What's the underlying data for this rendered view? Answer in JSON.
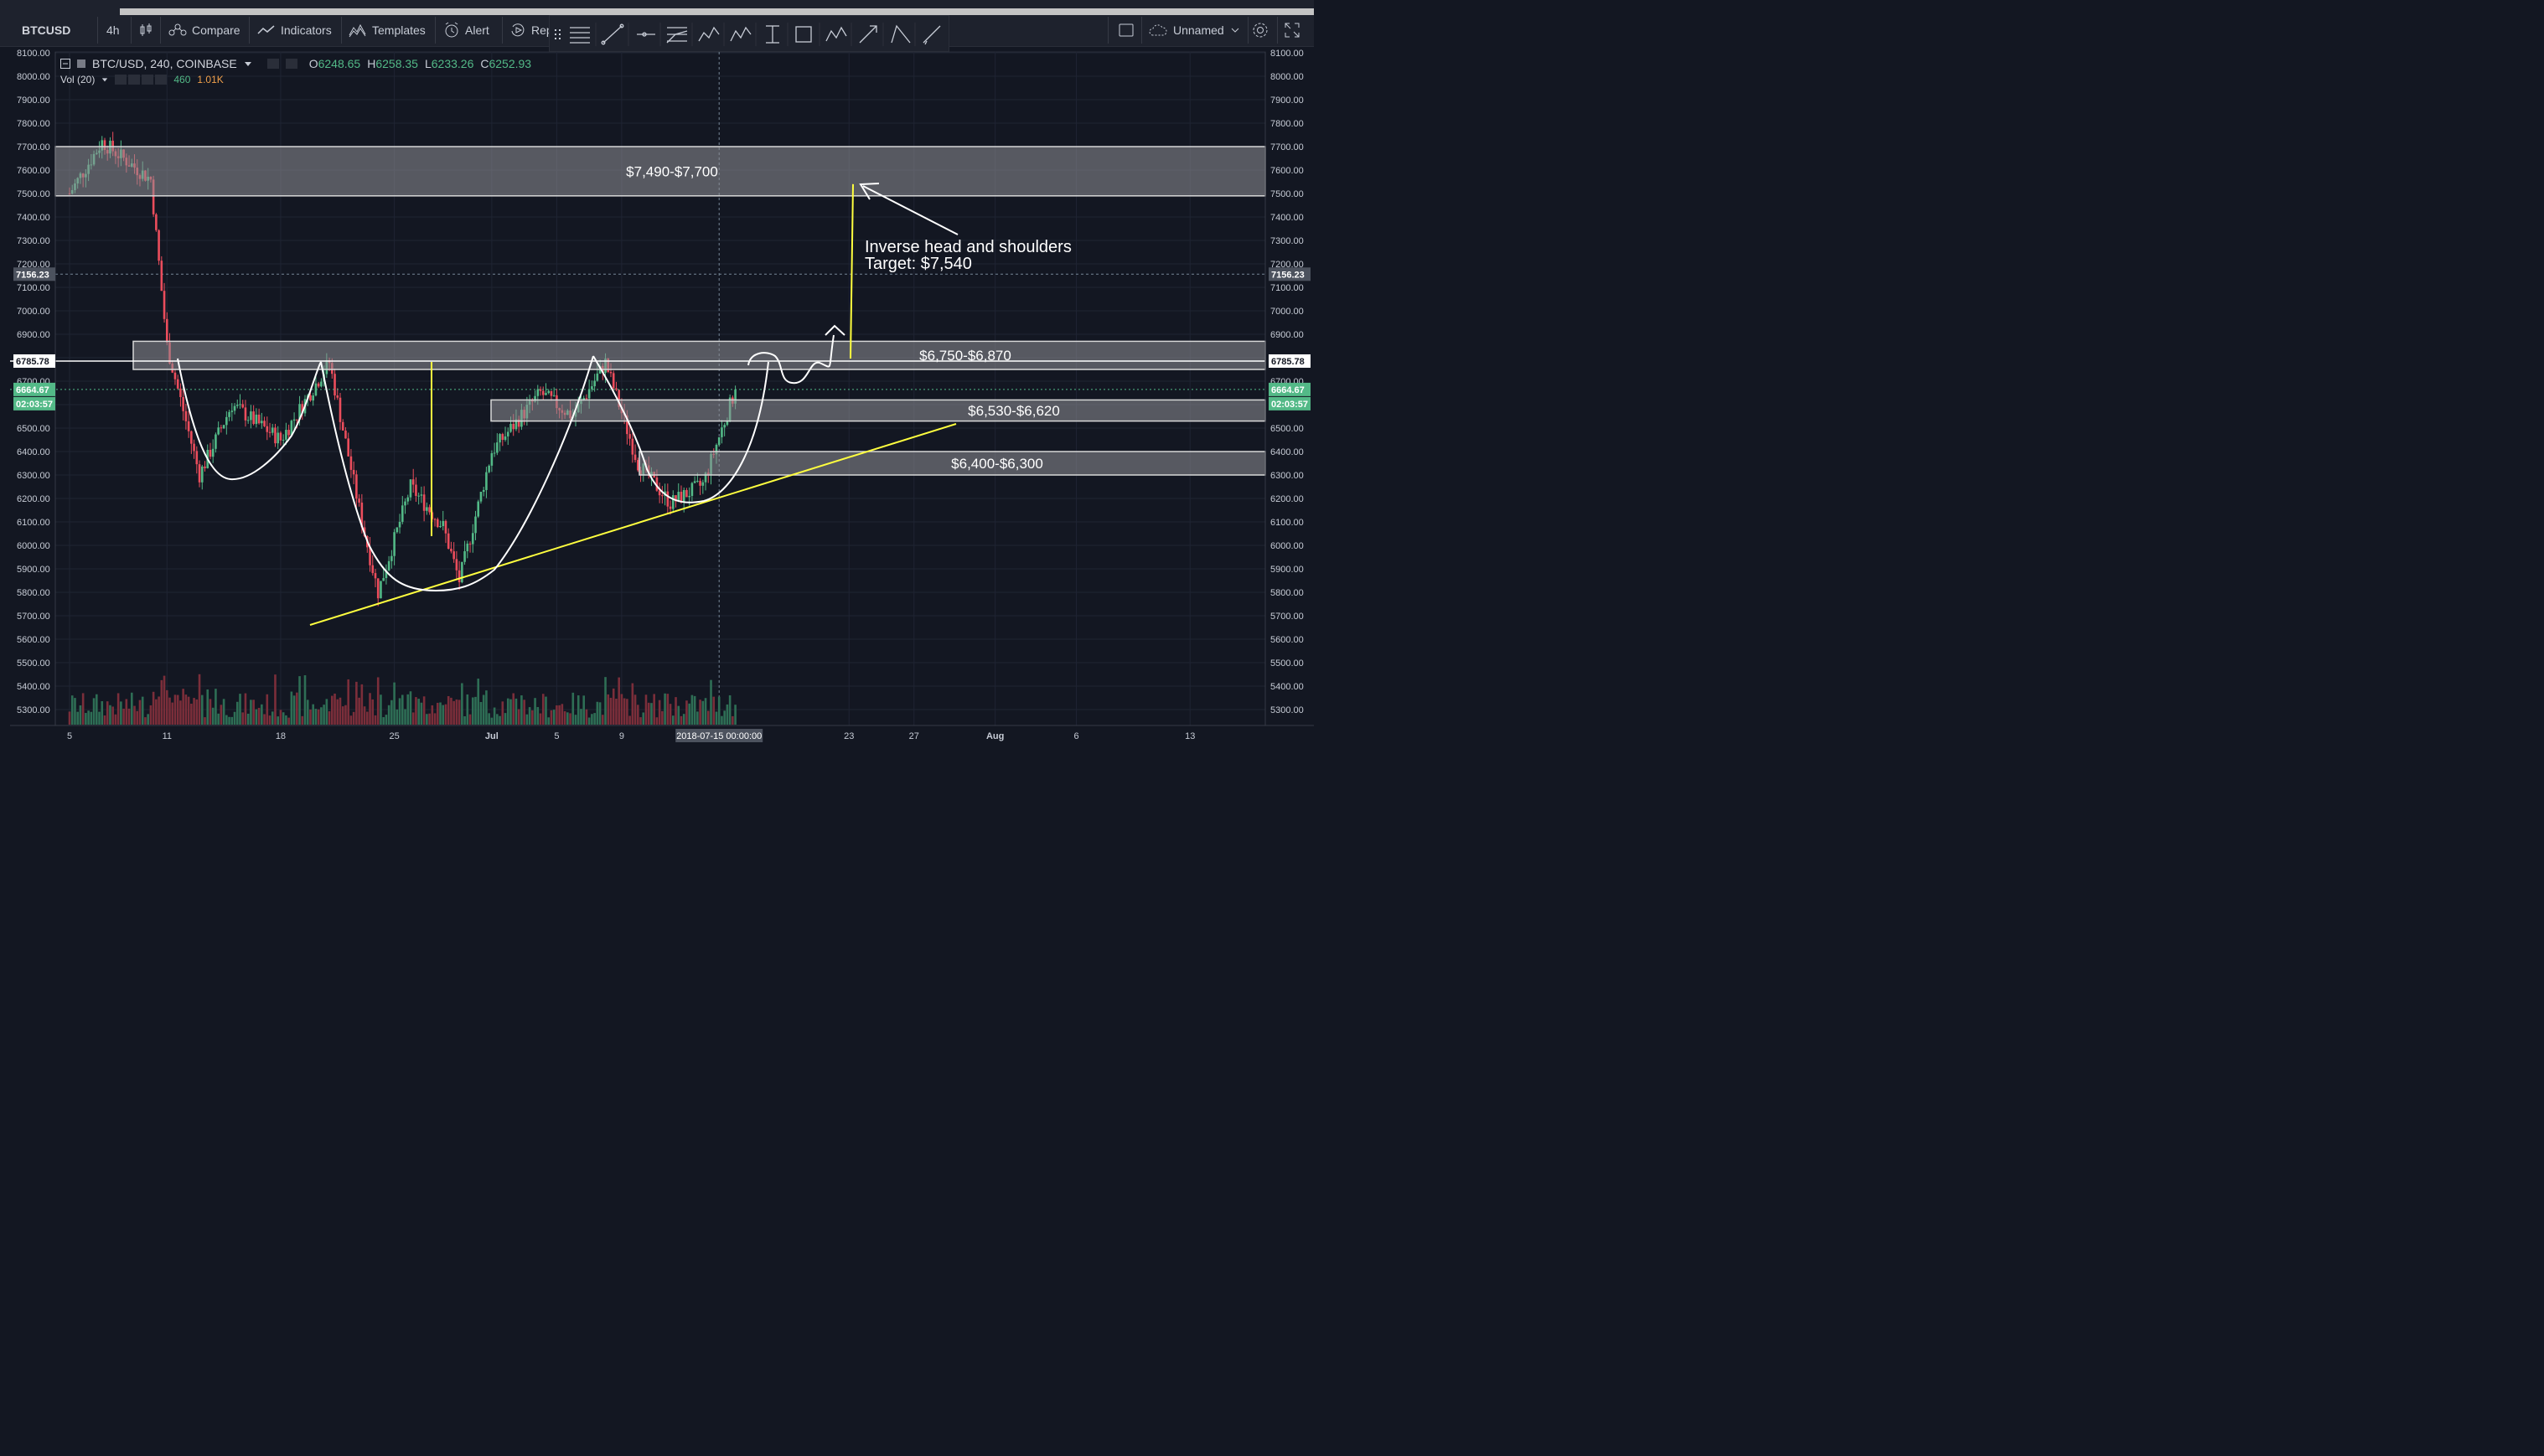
{
  "toolbar": {
    "symbol": "BTCUSD",
    "interval": "4h",
    "compare_label": "Compare",
    "indicators_label": "Indicators",
    "templates_label": "Templates",
    "alert_label": "Alert",
    "replay_label": "Rep",
    "layout_name": "Unnamed",
    "draw_tools": [
      "lines-icon",
      "trend-line-icon",
      "horizontal-ray-icon",
      "fib-icon",
      "pattern-15-icon",
      "abcd-icon",
      "text-cursor-icon",
      "rectangle-icon",
      "abc-icon",
      "arrow-icon",
      "triangle-icon",
      "pencil-icon"
    ]
  },
  "legend": {
    "title": "BTC/USD, 240, COINBASE",
    "open_k": "O",
    "open": "6248.65",
    "high_k": "H",
    "high": "6258.35",
    "low_k": "L",
    "low": "6233.26",
    "close_k": "C",
    "close": "6252.93",
    "vol_label": "Vol (20)",
    "vol_a": "460",
    "vol_b": "1.01K"
  },
  "price_scale": {
    "labels": [
      "8100.00",
      "8000.00",
      "7900.00",
      "7800.00",
      "7700.00",
      "7600.00",
      "7500.00",
      "7400.00",
      "7300.00",
      "7200.00",
      "7100.00",
      "7000.00",
      "6900.00",
      "6800.00",
      "6700.00",
      "6600.00",
      "6500.00",
      "6400.00",
      "6300.00",
      "6200.00",
      "6100.00",
      "6000.00",
      "5900.00",
      "5800.00",
      "5700.00",
      "5600.00",
      "5500.00",
      "5400.00",
      "5300.00"
    ],
    "marker_crosshair": "7156.23",
    "marker_line": "6785.78",
    "marker_last": "6664.67",
    "marker_countdown": "02:03:57"
  },
  "time_scale": {
    "labels": [
      "5",
      "11",
      "18",
      "25",
      "Jul",
      "5",
      "9",
      "23",
      "27",
      "Aug",
      "6",
      "13"
    ],
    "crosshair": "2018-07-15 00:00:00"
  },
  "annotations": {
    "zone_top": "$7,490-$7,700",
    "zone_mid": "$6,750-$6,870",
    "zone_low1": "$6,530-$6,620",
    "zone_low2": "$6,400-$6,300",
    "pattern_line1": "Inverse head and shoulders",
    "pattern_line2": "Target: $7,540"
  },
  "colors": {
    "background": "#131722",
    "up": "#53b987",
    "down": "#eb4d5c",
    "trendline": "#ffff3f",
    "zone_fill": "#8f8f96",
    "annotation": "#ffffff"
  },
  "chart_data": {
    "type": "candlestick",
    "symbol": "BTC/USD",
    "timeframe": "240",
    "exchange": "COINBASE",
    "ylim": [
      5250,
      8120
    ],
    "last_close": 6664.67,
    "horizontal_line": 6785.78,
    "zones": [
      {
        "label": "$7,490-$7,700",
        "low": 7490,
        "high": 7700
      },
      {
        "label": "$6,750-$6,870",
        "low": 6750,
        "high": 6870
      },
      {
        "label": "$6,530-$6,620",
        "low": 6530,
        "high": 6620
      },
      {
        "label": "$6,400-$6,300",
        "low": 6300,
        "high": 6400
      }
    ],
    "target": 7540,
    "path_keypoints": [
      {
        "date": "Jun 5",
        "close": 7500
      },
      {
        "date": "Jun 7",
        "close": 7720
      },
      {
        "date": "Jun 10",
        "close": 7560
      },
      {
        "date": "Jun 11",
        "close": 6850
      },
      {
        "date": "Jun 13",
        "close": 6300
      },
      {
        "date": "Jun 15",
        "close": 6600
      },
      {
        "date": "Jun 18",
        "close": 6450
      },
      {
        "date": "Jun 21",
        "close": 6780
      },
      {
        "date": "Jun 23",
        "close": 6100
      },
      {
        "date": "Jun 24",
        "close": 5800
      },
      {
        "date": "Jun 26",
        "close": 6250
      },
      {
        "date": "Jun 28",
        "close": 6080
      },
      {
        "date": "Jun 29",
        "close": 5850
      },
      {
        "date": "Jul 1",
        "close": 6400
      },
      {
        "date": "Jul 4",
        "close": 6650
      },
      {
        "date": "Jul 6",
        "close": 6550
      },
      {
        "date": "Jul 8",
        "close": 6780
      },
      {
        "date": "Jul 10",
        "close": 6350
      },
      {
        "date": "Jul 12",
        "close": 6180
      },
      {
        "date": "Jul 14",
        "close": 6260
      },
      {
        "date": "Jul 16",
        "close": 6664.67
      }
    ]
  }
}
